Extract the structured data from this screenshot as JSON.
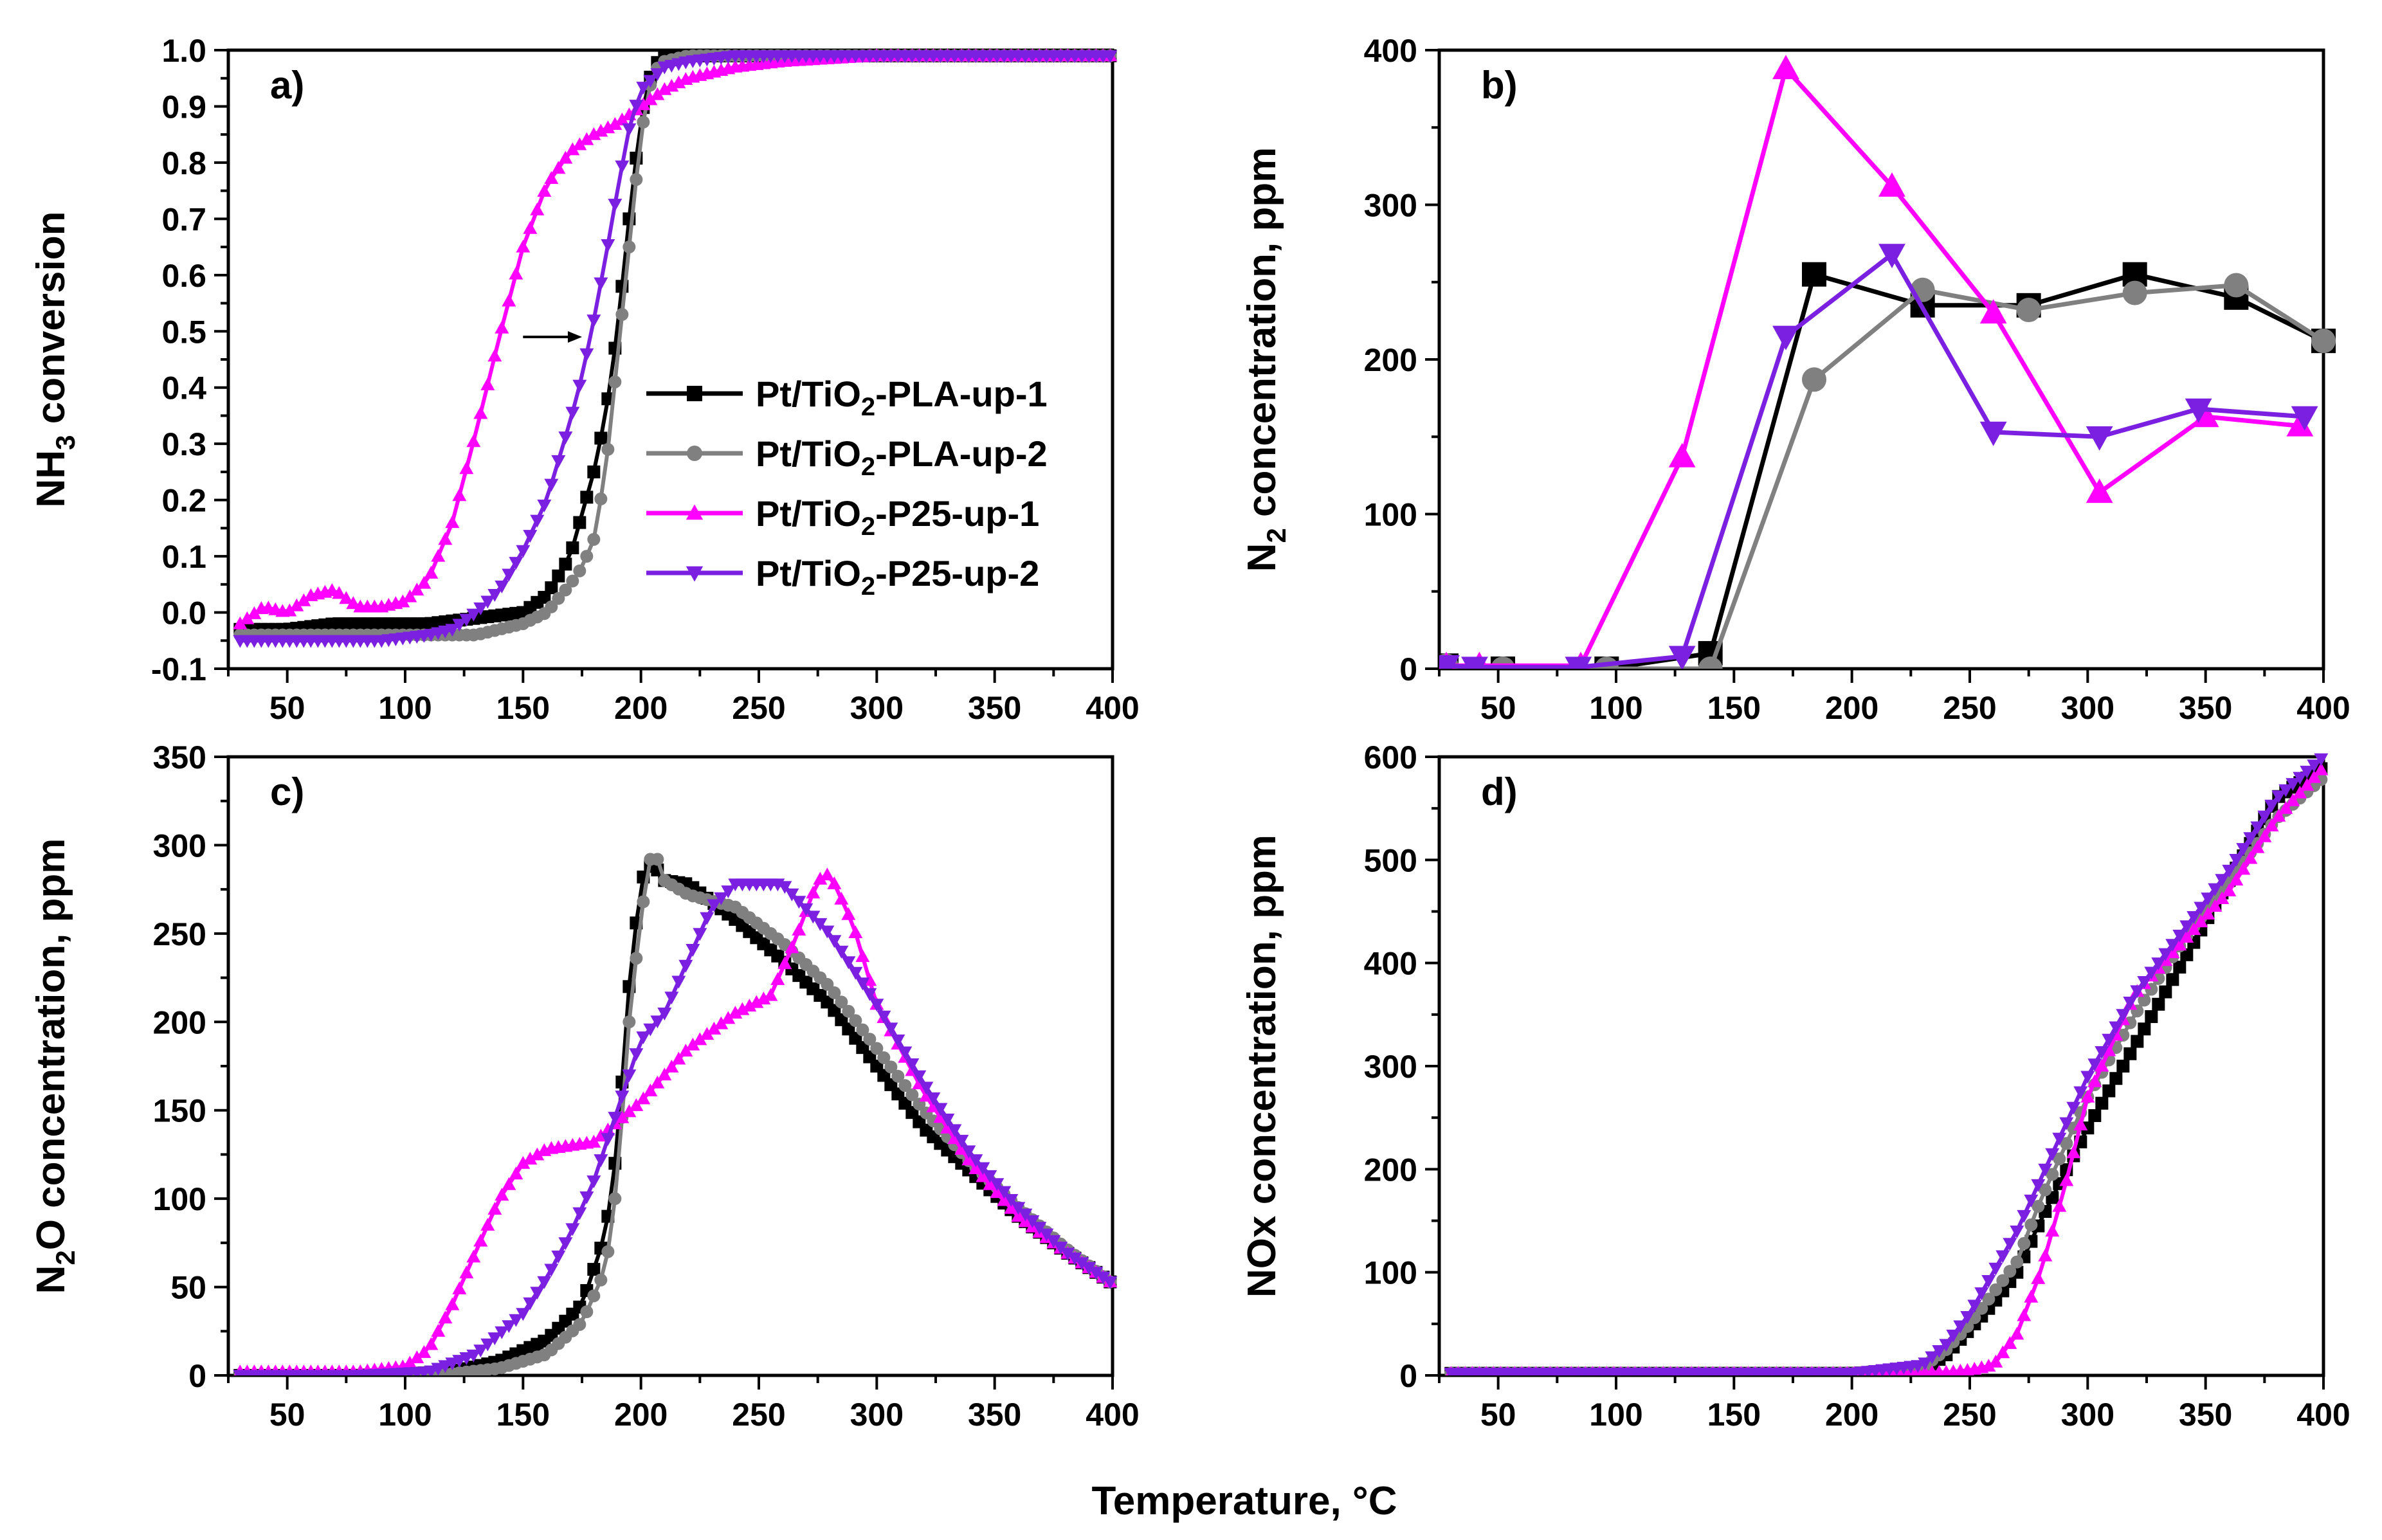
{
  "figure": {
    "common_xlabel": "Temperature, °C"
  },
  "colors": {
    "PLA-up-1": "#000000",
    "PLA-up-2": "#808080",
    "P25-up-1": "#ff00ff",
    "P25-up-2": "#7b1fe0"
  },
  "legend": [
    {
      "key": "PLA-up-1",
      "pre": "Pt/TiO",
      "sub": "2",
      "post": "-PLA-up-1",
      "marker": "square"
    },
    {
      "key": "PLA-up-2",
      "pre": "Pt/TiO",
      "sub": "2",
      "post": "-PLA-up-2",
      "marker": "circle"
    },
    {
      "key": "P25-up-1",
      "pre": "Pt/TiO",
      "sub": "2",
      "post": "-P25-up-1",
      "marker": "triangle-up"
    },
    {
      "key": "P25-up-2",
      "pre": "Pt/TiO",
      "sub": "2",
      "post": "-P25-up-2",
      "marker": "triangle-down"
    }
  ],
  "chart_data": [
    {
      "id": "a",
      "panel_label": "a)",
      "type": "line",
      "ylabel": {
        "pre": "NH",
        "sub": "3",
        "post": " conversion"
      },
      "xlim": [
        25,
        400
      ],
      "ylim": [
        -0.1,
        1.0
      ],
      "xticks": [
        50,
        100,
        150,
        200,
        250,
        300,
        350,
        400
      ],
      "yticks": [
        -0.1,
        0.0,
        0.1,
        0.2,
        0.3,
        0.4,
        0.5,
        0.6,
        0.7,
        0.8,
        0.9,
        1.0
      ],
      "ytick_labels": [
        "-0.1",
        "0.0",
        "0.1",
        "0.2",
        "0.3",
        "0.4",
        "0.5",
        "0.6",
        "0.7",
        "0.8",
        "0.9",
        "1.0"
      ],
      "dense": true,
      "annotation": {
        "type": "arrow",
        "from": [
          150,
          0.49
        ],
        "to": [
          175,
          0.49
        ]
      },
      "series": [
        {
          "name": "PLA-up-1",
          "marker": "square",
          "x": [
            30,
            50,
            70,
            90,
            110,
            130,
            150,
            160,
            170,
            180,
            185,
            190,
            195,
            200,
            205,
            210,
            220,
            240,
            300,
            400
          ],
          "y": [
            -0.03,
            -0.03,
            -0.02,
            -0.02,
            -0.02,
            -0.01,
            0.0,
            0.03,
            0.1,
            0.25,
            0.35,
            0.5,
            0.7,
            0.88,
            0.97,
            0.99,
            0.99,
            0.99,
            0.99,
            0.99
          ]
        },
        {
          "name": "PLA-up-2",
          "marker": "circle",
          "x": [
            30,
            50,
            70,
            90,
            110,
            130,
            150,
            160,
            170,
            175,
            180,
            185,
            190,
            195,
            200,
            205,
            210,
            220,
            240,
            300,
            400
          ],
          "y": [
            -0.04,
            -0.04,
            -0.04,
            -0.04,
            -0.04,
            -0.04,
            -0.02,
            0.0,
            0.05,
            0.08,
            0.13,
            0.25,
            0.45,
            0.65,
            0.85,
            0.96,
            0.98,
            0.99,
            0.99,
            0.99,
            0.99
          ]
        },
        {
          "name": "P25-up-1",
          "marker": "triangle-up",
          "x": [
            30,
            40,
            50,
            60,
            70,
            80,
            90,
            100,
            110,
            120,
            130,
            140,
            150,
            160,
            170,
            180,
            190,
            200,
            210,
            220,
            240,
            260,
            300,
            400
          ],
          "y": [
            -0.02,
            0.01,
            0.0,
            0.03,
            0.04,
            0.01,
            0.01,
            0.02,
            0.06,
            0.16,
            0.32,
            0.49,
            0.65,
            0.76,
            0.82,
            0.85,
            0.87,
            0.9,
            0.93,
            0.95,
            0.97,
            0.98,
            0.99,
            0.99
          ]
        },
        {
          "name": "P25-up-2",
          "marker": "triangle-down",
          "x": [
            30,
            50,
            70,
            90,
            110,
            120,
            130,
            140,
            150,
            160,
            170,
            175,
            180,
            185,
            190,
            195,
            200,
            210,
            220,
            240,
            300,
            400
          ],
          "y": [
            -0.05,
            -0.05,
            -0.05,
            -0.05,
            -0.04,
            -0.03,
            0.0,
            0.04,
            0.11,
            0.2,
            0.34,
            0.42,
            0.52,
            0.63,
            0.75,
            0.86,
            0.93,
            0.97,
            0.98,
            0.99,
            0.99,
            0.99
          ]
        }
      ]
    },
    {
      "id": "b",
      "panel_label": "b)",
      "type": "line",
      "ylabel": {
        "pre": "N",
        "sub": "2",
        "post": " concentration, ppm"
      },
      "xlim": [
        25,
        400
      ],
      "ylim": [
        0,
        400
      ],
      "xticks": [
        50,
        100,
        150,
        200,
        250,
        300,
        350,
        400
      ],
      "yticks": [
        0,
        100,
        200,
        300,
        400
      ],
      "ytick_labels": [
        "0",
        "100",
        "200",
        "300",
        "400"
      ],
      "dense": false,
      "series": [
        {
          "name": "PLA-up-1",
          "marker": "square",
          "x": [
            28,
            52,
            96,
            140,
            184,
            230,
            275,
            320,
            363,
            400
          ],
          "y": [
            2,
            0,
            0,
            10,
            255,
            235,
            235,
            255,
            240,
            212
          ]
        },
        {
          "name": "PLA-up-2",
          "marker": "circle",
          "x": [
            28,
            52,
            96,
            140,
            184,
            230,
            275,
            320,
            363,
            400
          ],
          "y": [
            2,
            0,
            0,
            0,
            187,
            245,
            232,
            243,
            248,
            212
          ]
        },
        {
          "name": "P25-up-1",
          "marker": "triangle-up",
          "x": [
            28,
            42,
            85,
            128,
            172,
            217,
            260,
            305,
            350,
            390
          ],
          "y": [
            2,
            2,
            2,
            137,
            388,
            312,
            230,
            114,
            163,
            157
          ]
        },
        {
          "name": "P25-up-2",
          "marker": "triangle-down",
          "x": [
            28,
            40,
            84,
            128,
            172,
            217,
            260,
            305,
            347,
            392
          ],
          "y": [
            2,
            1,
            1,
            8,
            215,
            268,
            153,
            150,
            168,
            163
          ]
        }
      ]
    },
    {
      "id": "c",
      "panel_label": "c)",
      "type": "line",
      "ylabel": {
        "pre": "N",
        "sub": "2",
        "post": "O concentration, ppm"
      },
      "xlim": [
        25,
        400
      ],
      "ylim": [
        0,
        350
      ],
      "xticks": [
        50,
        100,
        150,
        200,
        250,
        300,
        350,
        400
      ],
      "yticks": [
        0,
        50,
        100,
        150,
        200,
        250,
        300,
        350
      ],
      "ytick_labels": [
        "0",
        "50",
        "100",
        "150",
        "200",
        "250",
        "300",
        "350"
      ],
      "dense": true,
      "series": [
        {
          "name": "PLA-up-1",
          "marker": "square",
          "x": [
            30,
            80,
            120,
            140,
            160,
            175,
            185,
            190,
            195,
            200,
            205,
            210,
            220,
            240,
            260,
            280,
            300,
            320,
            340,
            360,
            380,
            400
          ],
          "y": [
            0,
            0,
            2,
            8,
            20,
            40,
            80,
            130,
            220,
            280,
            290,
            280,
            278,
            258,
            235,
            210,
            175,
            140,
            115,
            90,
            70,
            52
          ]
        },
        {
          "name": "PLA-up-2",
          "marker": "circle",
          "x": [
            30,
            80,
            120,
            140,
            160,
            175,
            185,
            190,
            195,
            200,
            205,
            210,
            220,
            240,
            260,
            280,
            300,
            320,
            340,
            360,
            380,
            400
          ],
          "y": [
            0,
            0,
            1,
            4,
            12,
            30,
            60,
            110,
            200,
            260,
            300,
            280,
            272,
            265,
            245,
            220,
            185,
            150,
            120,
            95,
            72,
            52
          ]
        },
        {
          "name": "P25-up-1",
          "marker": "triangle-up",
          "x": [
            30,
            80,
            100,
            110,
            120,
            130,
            140,
            150,
            160,
            180,
            200,
            220,
            240,
            255,
            265,
            275,
            280,
            290,
            300,
            320,
            340,
            360,
            380,
            400
          ],
          "y": [
            2,
            2,
            5,
            15,
            40,
            70,
            100,
            120,
            128,
            132,
            155,
            185,
            205,
            215,
            245,
            280,
            284,
            255,
            210,
            160,
            120,
            90,
            70,
            52
          ]
        },
        {
          "name": "P25-up-2",
          "marker": "triangle-down",
          "x": [
            30,
            80,
            110,
            130,
            150,
            160,
            170,
            180,
            190,
            200,
            210,
            220,
            230,
            240,
            260,
            280,
            300,
            320,
            340,
            360,
            380,
            400
          ],
          "y": [
            0,
            0,
            2,
            12,
            35,
            55,
            80,
            110,
            150,
            190,
            205,
            235,
            265,
            278,
            278,
            250,
            210,
            165,
            125,
            95,
            70,
            52
          ]
        }
      ]
    },
    {
      "id": "d",
      "panel_label": "d)",
      "type": "line",
      "ylabel": {
        "pre": "NOx concentration, ppm",
        "sub": "",
        "post": ""
      },
      "xlim": [
        25,
        400
      ],
      "ylim": [
        0,
        600
      ],
      "xticks": [
        50,
        100,
        150,
        200,
        250,
        300,
        350,
        400
      ],
      "yticks": [
        0,
        100,
        200,
        300,
        400,
        500,
        600
      ],
      "ytick_labels": [
        "0",
        "100",
        "200",
        "300",
        "400",
        "500",
        "600"
      ],
      "dense": true,
      "series": [
        {
          "name": "PLA-up-1",
          "marker": "square",
          "x": [
            30,
            100,
            200,
            230,
            240,
            250,
            260,
            270,
            280,
            300,
            320,
            340,
            360,
            380,
            400
          ],
          "y": [
            2,
            2,
            2,
            5,
            20,
            45,
            70,
            100,
            150,
            240,
            320,
            400,
            480,
            560,
            590
          ]
        },
        {
          "name": "PLA-up-2",
          "marker": "circle",
          "x": [
            30,
            100,
            200,
            230,
            240,
            250,
            260,
            270,
            280,
            300,
            320,
            340,
            360,
            380,
            400
          ],
          "y": [
            2,
            2,
            2,
            8,
            25,
            50,
            80,
            110,
            170,
            270,
            350,
            420,
            480,
            540,
            580
          ]
        },
        {
          "name": "P25-up-1",
          "marker": "triangle-up",
          "x": [
            30,
            100,
            200,
            240,
            250,
            260,
            270,
            280,
            290,
            300,
            320,
            340,
            360,
            380,
            400
          ],
          "y": [
            2,
            2,
            2,
            3,
            5,
            10,
            40,
            100,
            180,
            270,
            370,
            420,
            470,
            540,
            590
          ]
        },
        {
          "name": "P25-up-2",
          "marker": "triangle-down",
          "x": [
            30,
            100,
            200,
            230,
            240,
            250,
            260,
            270,
            280,
            300,
            320,
            340,
            360,
            380,
            400
          ],
          "y": [
            2,
            2,
            2,
            10,
            30,
            60,
            100,
            140,
            190,
            290,
            370,
            430,
            490,
            560,
            600
          ]
        }
      ]
    }
  ]
}
